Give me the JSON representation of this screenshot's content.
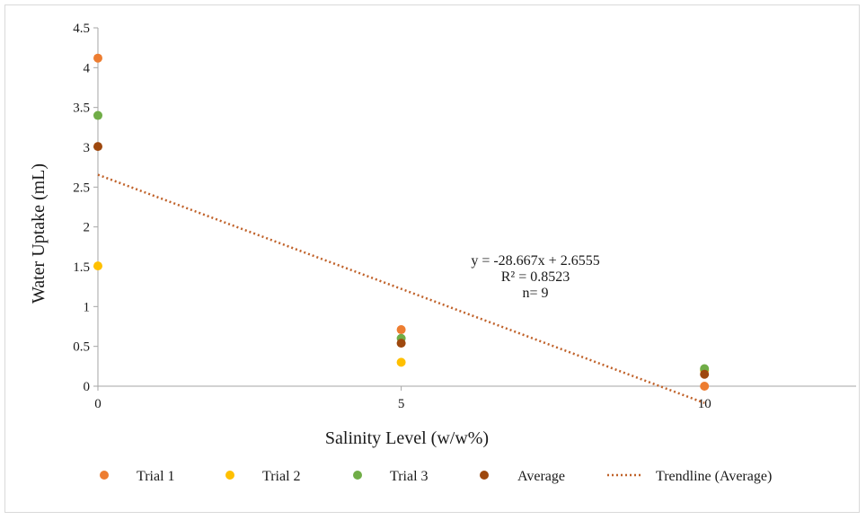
{
  "chart_data": {
    "type": "scatter",
    "title": "",
    "xlabel": "Salinity Level (w/w%)",
    "ylabel": "Water Uptake (mL)",
    "xlim": [
      0,
      12.5
    ],
    "ylim": [
      0,
      4.5
    ],
    "x_ticks": [
      "0",
      "5",
      "10"
    ],
    "y_ticks": [
      "0",
      "0.5",
      "1",
      "1.5",
      "2",
      "2.5",
      "3",
      "3.5",
      "4",
      "4.5"
    ],
    "grid": false,
    "legend_position": "bottom",
    "series": [
      {
        "name": "Trial 1",
        "color": "#ed7d31",
        "points": [
          [
            0,
            4.12
          ],
          [
            5,
            0.71
          ],
          [
            10,
            0.0
          ]
        ]
      },
      {
        "name": "Trial 2",
        "color": "#ffc000",
        "points": [
          [
            0,
            1.51
          ],
          [
            5,
            0.3
          ],
          [
            10,
            0.2
          ]
        ]
      },
      {
        "name": "Trial 3",
        "color": "#70ad47",
        "points": [
          [
            0,
            3.4
          ],
          [
            5,
            0.6
          ],
          [
            10,
            0.22
          ]
        ]
      },
      {
        "name": "Average",
        "color": "#9e480e",
        "points": [
          [
            0,
            3.01
          ],
          [
            5,
            0.54
          ],
          [
            10,
            0.15
          ]
        ]
      }
    ],
    "trendline": {
      "name": "Trendline (Average)",
      "color": "#c0622a",
      "style": "dotted",
      "slope_per_x_unit": -0.28667,
      "intercept": 2.6555
    },
    "annotation": {
      "lines": [
        "y = -28.667x + 2.6555",
        "R² = 0.8523",
        "n= 9"
      ]
    }
  }
}
